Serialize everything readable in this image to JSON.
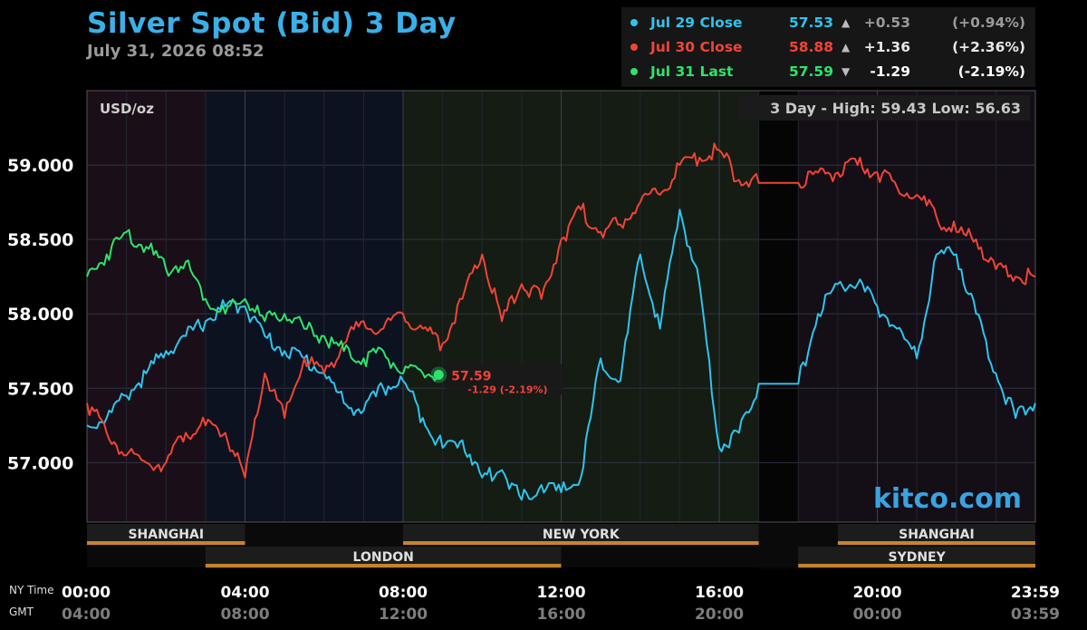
{
  "header": {
    "title": "Silver Spot (Bid) 3 Day",
    "subtitle": "July 31, 2026 08:52"
  },
  "legend": [
    {
      "name": "Jul 29 Close",
      "value": "57.53",
      "arrow": "▲",
      "change": "+0.53",
      "pct": "(+0.94%)",
      "color": "#2fc4ec",
      "change_color": "#9a9a9a"
    },
    {
      "name": "Jul 30 Close",
      "value": "58.88",
      "arrow": "▲",
      "change": "+1.36",
      "pct": "(+2.36%)",
      "color": "#f04436",
      "change_color": "#e8e8e8"
    },
    {
      "name": "Jul 31 Last",
      "value": "57.59",
      "arrow": "▼",
      "change": "-1.29",
      "pct": "(-2.19%)",
      "color": "#2ee36c",
      "change_color": "#ffffff"
    }
  ],
  "chart_data": {
    "type": "line",
    "ylabel": "USD/oz",
    "range_label": "3 Day - High: 59.43  Low: 56.63",
    "ylim": [
      56.6,
      59.5
    ],
    "yticks": [
      "59.000",
      "58.500",
      "58.000",
      "57.500",
      "57.000"
    ],
    "ytick_values": [
      59.0,
      58.5,
      58.0,
      57.5,
      57.0
    ],
    "xlim": [
      0,
      24
    ],
    "xticks_ny": [
      "00:00",
      "04:00",
      "08:00",
      "12:00",
      "16:00",
      "20:00",
      "23:59"
    ],
    "xticks_gmt": [
      "04:00",
      "08:00",
      "12:00",
      "16:00",
      "20:00",
      "00:00",
      "03:59"
    ],
    "xtick_values": [
      0,
      4,
      8,
      12,
      16,
      20,
      24
    ],
    "axis_row_labels": [
      "NY Time",
      "GMT"
    ],
    "grid": true,
    "watermark": "kitco.com",
    "sessions_upper": [
      {
        "name": "SHANGHAI",
        "start": 0,
        "end": 4,
        "label": true
      },
      {
        "name": "NEW YORK",
        "start": 8,
        "end": 17,
        "label": true
      },
      {
        "name": "SHANGHAI",
        "start": 19,
        "end": 24,
        "label": true
      }
    ],
    "sessions_lower": [
      {
        "name": "LONDON",
        "start": 3,
        "end": 12,
        "label": true
      },
      {
        "name": "SYDNEY",
        "start": 18,
        "end": 24,
        "label": true
      }
    ],
    "gap": {
      "start": 17,
      "end": 18
    },
    "last_marker": {
      "x": 8.9,
      "y": 57.59,
      "label": "57.59",
      "change": "-1.29 (-2.19%)"
    },
    "series": [
      {
        "name": "Jul 29 Close",
        "color": "#2fc4ec",
        "x": [
          0,
          0.5,
          1,
          1.5,
          2,
          2.5,
          3,
          3.5,
          4,
          4.5,
          5,
          5.5,
          6,
          6.5,
          7,
          7.5,
          8,
          8.5,
          9,
          9.5,
          10,
          10.5,
          11,
          11.5,
          12,
          12.5,
          13,
          13.5,
          14,
          14.5,
          15,
          15.5,
          16,
          16.5,
          17,
          18,
          18.5,
          19,
          19.5,
          20,
          20.5,
          21,
          21.5,
          22,
          22.5,
          23,
          23.5,
          24
        ],
        "y": [
          57.25,
          57.3,
          57.45,
          57.6,
          57.75,
          57.85,
          57.95,
          58.05,
          58.05,
          57.85,
          57.75,
          57.7,
          57.6,
          57.4,
          57.35,
          57.5,
          57.55,
          57.3,
          57.1,
          57.15,
          56.9,
          56.95,
          56.75,
          56.85,
          56.8,
          56.9,
          57.7,
          57.55,
          58.4,
          57.9,
          58.7,
          58.2,
          57.1,
          57.2,
          57.53,
          57.53,
          58.0,
          58.2,
          58.2,
          58.05,
          57.9,
          57.7,
          58.4,
          58.4,
          58.0,
          57.6,
          57.3,
          57.4
        ]
      },
      {
        "name": "Jul 30 Close",
        "color": "#f04436",
        "x": [
          0,
          0.5,
          1,
          1.5,
          2,
          2.5,
          3,
          3.5,
          4,
          4.5,
          5,
          5.5,
          6,
          6.5,
          7,
          7.5,
          8,
          8.5,
          9,
          9.5,
          10,
          10.5,
          11,
          11.5,
          12,
          12.5,
          13,
          13.5,
          14,
          14.5,
          15,
          15.5,
          16,
          16.5,
          17,
          18,
          18.5,
          19,
          19.5,
          20,
          20.5,
          21,
          21.5,
          22,
          22.5,
          23,
          23.5,
          24
        ],
        "y": [
          57.4,
          57.2,
          57.05,
          57.0,
          57.0,
          57.2,
          57.25,
          57.2,
          56.9,
          57.6,
          57.3,
          57.7,
          57.6,
          57.8,
          57.95,
          57.9,
          58.0,
          57.9,
          57.8,
          58.1,
          58.4,
          57.95,
          58.2,
          58.1,
          58.5,
          58.7,
          58.55,
          58.6,
          58.75,
          58.8,
          59.0,
          59.05,
          59.1,
          58.9,
          58.88,
          58.88,
          58.95,
          58.95,
          59.0,
          58.95,
          58.85,
          58.8,
          58.65,
          58.55,
          58.5,
          58.3,
          58.25,
          58.25
        ]
      },
      {
        "name": "Jul 31 Last",
        "color": "#2ee36c",
        "x": [
          0,
          0.5,
          1,
          1.5,
          2,
          2.5,
          3,
          3.5,
          4,
          4.5,
          5,
          5.5,
          6,
          6.5,
          7,
          7.5,
          8,
          8.5,
          8.9
        ],
        "y": [
          58.25,
          58.4,
          58.55,
          58.45,
          58.3,
          58.35,
          58.1,
          58.0,
          58.1,
          57.95,
          58.0,
          57.9,
          57.85,
          57.75,
          57.7,
          57.75,
          57.6,
          57.6,
          57.59
        ]
      }
    ]
  }
}
